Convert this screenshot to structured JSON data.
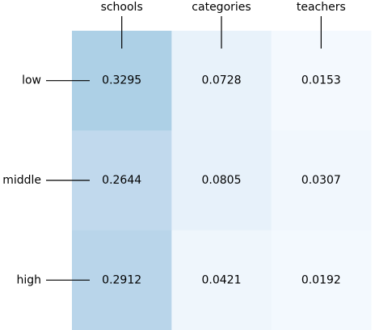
{
  "chart_data": {
    "type": "heatmap",
    "title": "",
    "xlabel": "",
    "ylabel": "",
    "x_categories": [
      "schools",
      "categories",
      "teachers"
    ],
    "y_categories": [
      "low",
      "middle",
      "high"
    ],
    "values": [
      [
        0.3295,
        0.0728,
        0.0153
      ],
      [
        0.2644,
        0.0805,
        0.0307
      ],
      [
        0.2912,
        0.0421,
        0.0192
      ]
    ],
    "value_labels": [
      [
        "0.3295",
        "0.0728",
        "0.0153"
      ],
      [
        "0.2644",
        "0.0805",
        "0.0307"
      ],
      [
        "0.2912",
        "0.0421",
        "0.0192"
      ]
    ],
    "colormap": "Blues",
    "color_range": [
      0,
      1
    ],
    "x_axis_position": "top",
    "grid": false,
    "legend": "none"
  }
}
